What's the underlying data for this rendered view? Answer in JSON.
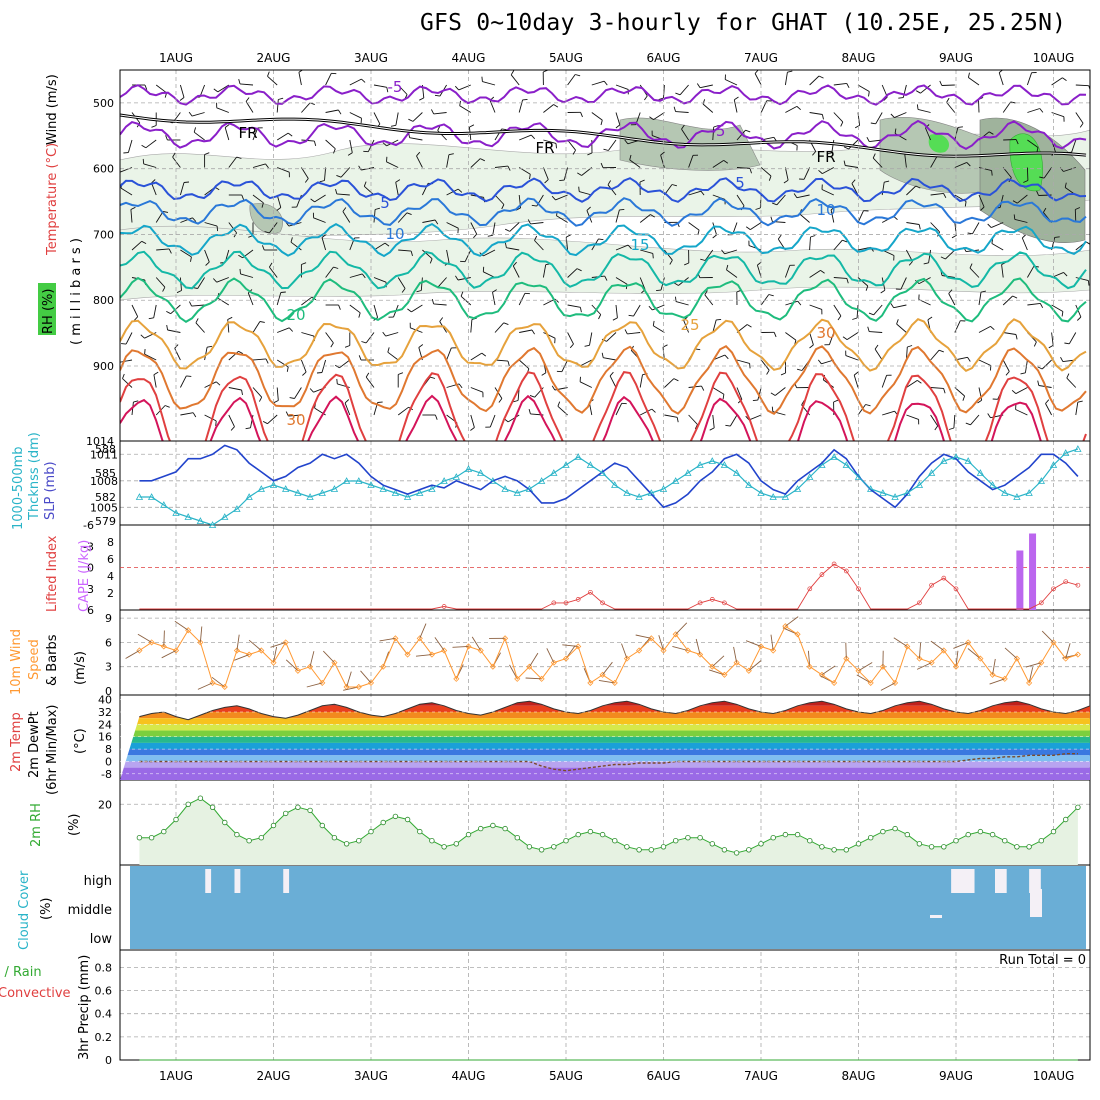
{
  "title": "GFS 0~10day 3-hourly for GHAT (10.25E, 25.25N)",
  "days": [
    "1AUG",
    "2AUG",
    "3AUG",
    "4AUG",
    "5AUG",
    "6AUG",
    "7AUG",
    "8AUG",
    "9AUG",
    "10AUG"
  ],
  "upper": {
    "ylabel_wind": "Wind (m/s)",
    "ylabel_temp": "Temperature (°C)",
    "ylabel_rh": "RH (%)",
    "ylabel_units": "( m i l l i b a r s )",
    "pressure_ticks": [
      "500",
      "600",
      "700",
      "800",
      "900",
      "1014"
    ],
    "temp_labels": [
      "-5",
      "-5",
      "5",
      "5",
      "10",
      "10",
      "15",
      "20",
      "25",
      "30",
      "30",
      "FR",
      "FR",
      "FR"
    ]
  },
  "panels": {
    "slp": {
      "label1": "1000-500mb",
      "label2": "Thcknss (dm)",
      "label3": "SLP (mb)",
      "left_ticks": [
        "588",
        "585",
        "582",
        "579"
      ],
      "right_ticks": [
        "1011",
        "1008",
        "1005"
      ]
    },
    "cape": {
      "label1": "Lifted Index",
      "label2": "CAPE (J/kg)",
      "left_ticks": [
        "-6",
        "-3",
        "0",
        "3",
        "6"
      ],
      "right_ticks": [
        "8",
        "6",
        "4",
        "2"
      ]
    },
    "wind10": {
      "label1": "10m Wind",
      "label2": "Speed",
      "label3": "& Barbs",
      "unit": "(m/s)",
      "ticks": [
        "9",
        "6",
        "3",
        "0"
      ]
    },
    "temp2m": {
      "label1": "2m Temp",
      "label2": "2m DewPt",
      "label3": "(6hr Min/Max)",
      "unit": "(°C)",
      "ticks": [
        "40",
        "32",
        "24",
        "16",
        "8",
        "0",
        "-8"
      ]
    },
    "rh2m": {
      "label1": "2m RH",
      "unit": "(%)",
      "ticks": [
        "20"
      ]
    },
    "cloud": {
      "label1": "Cloud Cover",
      "unit": "(%)",
      "ticks": [
        "high",
        "middle",
        "low"
      ]
    },
    "precip": {
      "label1": "Total / Rain",
      "label2": "Convective",
      "label3": "3hr Precip (mm)",
      "ticks": [
        "0.8",
        "0.6",
        "0.4",
        "0.2",
        "0"
      ],
      "run_total": "Run Total = 0"
    }
  },
  "chart_data": {
    "type": "line",
    "time_step_hours": 3,
    "x_start": "2020-07-31T15",
    "day_labels": [
      "1AUG",
      "2AUG",
      "3AUG",
      "4AUG",
      "5AUG",
      "6AUG",
      "7AUG",
      "8AUG",
      "9AUG",
      "10AUG"
    ],
    "slp_mb": [
      1008,
      1008,
      1008.5,
      1009,
      1010.5,
      1010.5,
      1011,
      1012,
      1011.5,
      1010,
      1009,
      1008,
      1008.5,
      1009.5,
      1010,
      1011,
      1010.5,
      1011,
      1010,
      1008.5,
      1007.5,
      1007,
      1006.5,
      1007,
      1007.5,
      1007.2,
      1008,
      1007.5,
      1007,
      1008,
      1008.5,
      1008,
      1007,
      1005.5,
      1005.5,
      1006,
      1007,
      1008,
      1009,
      1010,
      1009.5,
      1008,
      1006.5,
      1005,
      1005.5,
      1006.5,
      1008,
      1009,
      1010.5,
      1011,
      1010,
      1008,
      1007,
      1006.5,
      1008,
      1009,
      1010,
      1011.5,
      1010.5,
      1008.5,
      1007,
      1006,
      1005,
      1006.5,
      1008.5,
      1010,
      1011,
      1010.5,
      1009,
      1008,
      1007,
      1007.5,
      1008.5,
      1009.5,
      1011,
      1011,
      1010,
      1008.5,
      1007,
      1006,
      1005.5,
      1007,
      1008.5,
      1009.5,
      1010
    ],
    "thickness_dm": [
      582,
      582,
      581,
      580,
      579.5,
      579,
      578.5,
      579.5,
      580.5,
      582,
      583,
      583.5,
      583,
      582.5,
      582,
      582.5,
      583,
      584,
      584,
      583.5,
      583,
      582.5,
      582,
      582.5,
      583,
      584,
      584.5,
      585.5,
      585,
      584,
      583,
      582.5,
      583,
      584,
      585,
      586,
      587,
      586,
      585,
      583.5,
      582.5,
      582,
      582.5,
      583,
      584,
      585,
      586,
      586.5,
      586,
      585,
      583.5,
      582.5,
      582,
      582,
      583,
      584.5,
      586,
      587,
      586,
      584.5,
      583,
      582.5,
      582,
      582.5,
      583.5,
      585,
      586.5,
      587,
      586.5,
      585,
      583.5,
      582.5,
      582,
      582.5,
      584,
      586,
      587.5,
      588,
      587,
      585,
      583.5,
      583,
      582,
      581,
      580
    ],
    "lifted_index": [
      6,
      6,
      6,
      6,
      6,
      6,
      6,
      6,
      6,
      6,
      6,
      6,
      6,
      6,
      6,
      6,
      6,
      6,
      6,
      6,
      6,
      6,
      6,
      6,
      6,
      5.5,
      6,
      6,
      6,
      6,
      6,
      6,
      6,
      6,
      5,
      5,
      4.5,
      3.5,
      5,
      6,
      6,
      6,
      6,
      6,
      6,
      6,
      5,
      4.5,
      5,
      6,
      6,
      6,
      6,
      6,
      6,
      3,
      1,
      -0.5,
      0.5,
      3,
      6,
      6,
      6,
      6,
      5,
      2.5,
      1.5,
      3,
      6,
      6,
      6,
      6,
      6,
      6,
      5,
      3,
      2,
      2.5,
      4,
      5,
      4,
      3,
      2,
      3.5,
      5
    ],
    "cape_bars": [
      {
        "day_index": 8.65,
        "value": 7
      },
      {
        "day_index": 8.78,
        "value": 9
      }
    ],
    "wind10_speed_ms": [
      5,
      6,
      5.5,
      5,
      7.5,
      6,
      1,
      0.5,
      5,
      4.5,
      5,
      3.5,
      6,
      2.5,
      3,
      1,
      3.5,
      0.5,
      0.5,
      1,
      3,
      6.5,
      4.5,
      6.5,
      4.5,
      5,
      1.5,
      5.5,
      5,
      3,
      6.5,
      1.5,
      3,
      1.5,
      3.5,
      4,
      5.5,
      1,
      2,
      1,
      4,
      5,
      6.5,
      5,
      7,
      5,
      4.5,
      3,
      2,
      3.5,
      2.5,
      5.5,
      5,
      8,
      7,
      3,
      2,
      1,
      4,
      2.5,
      1,
      3,
      1,
      5.5,
      4,
      3.5,
      5,
      3,
      6,
      4,
      2,
      1.5,
      4,
      1,
      3.5,
      6,
      4,
      4.5,
      6,
      3,
      1.5,
      6,
      9.5,
      3
    ],
    "temp2m_c": [
      29,
      31,
      32,
      29,
      27,
      30,
      33,
      35,
      36,
      34,
      31,
      29,
      28,
      30,
      33,
      36,
      37,
      35,
      32,
      30,
      29,
      31,
      34,
      37,
      38,
      36,
      33,
      31,
      30,
      32,
      35,
      38,
      39,
      37,
      34,
      32,
      31,
      33,
      36,
      38,
      39,
      37,
      34,
      32,
      31,
      33,
      36,
      38,
      39,
      37,
      34,
      32,
      31,
      33,
      36,
      38,
      39,
      37,
      34,
      32,
      31,
      33,
      36,
      38,
      39,
      37,
      34,
      32,
      31,
      33,
      36,
      38,
      39,
      37,
      34,
      32,
      31,
      33,
      36,
      38,
      37,
      34,
      32,
      31,
      30
    ],
    "dewpt2m_c": [
      0,
      0,
      0,
      0,
      0,
      0,
      0,
      0,
      0,
      0,
      0,
      0,
      0,
      0,
      0,
      0,
      0,
      0,
      0,
      0,
      0,
      0,
      0,
      0,
      0,
      0,
      0,
      0,
      0,
      0,
      0,
      0,
      0,
      -3,
      -5,
      -6,
      -5,
      -4,
      -3,
      -2,
      -2,
      -1,
      -1,
      -1,
      0,
      0,
      0,
      0,
      0,
      0,
      0,
      0,
      0,
      0,
      0,
      0,
      0,
      0,
      0,
      0,
      0,
      0,
      0,
      0,
      0,
      0,
      0,
      0,
      1,
      2,
      2,
      3,
      3,
      4,
      4,
      4,
      5,
      5,
      5,
      5,
      5,
      5,
      5,
      5,
      5
    ],
    "rh2m_pct": [
      9,
      9,
      11,
      15,
      20,
      22,
      19,
      14,
      10,
      8,
      9,
      13,
      17,
      19,
      18,
      13,
      9,
      7,
      8,
      11,
      14,
      16,
      15,
      11,
      8,
      6,
      7,
      10,
      12,
      13,
      12,
      9,
      6,
      5,
      6,
      8,
      10,
      11,
      10,
      8,
      6,
      5,
      5,
      6,
      8,
      9,
      9,
      7,
      5,
      4,
      5,
      7,
      9,
      10,
      10,
      8,
      6,
      5,
      5,
      7,
      9,
      11,
      12,
      10,
      7,
      6,
      6,
      8,
      10,
      11,
      10,
      8,
      6,
      6,
      8,
      11,
      15,
      19,
      17,
      12,
      10,
      14,
      19,
      21,
      20
    ],
    "cloud_high_blocks": [
      {
        "day": 0.3,
        "w": 0.1
      },
      {
        "day": 0.6,
        "w": 0.1
      },
      {
        "day": 1.1,
        "w": 0.1
      },
      {
        "day": 7.95,
        "w": 0.4
      },
      {
        "day": 8.4,
        "w": 0.2
      },
      {
        "day": 8.75,
        "w": 0.2
      }
    ],
    "precip_mm": [
      0,
      0,
      0,
      0,
      0,
      0,
      0,
      0,
      0,
      0,
      0,
      0,
      0,
      0,
      0,
      0,
      0,
      0,
      0,
      0,
      0,
      0,
      0,
      0,
      0,
      0,
      0,
      0,
      0,
      0,
      0,
      0,
      0,
      0,
      0,
      0,
      0,
      0,
      0,
      0,
      0,
      0,
      0,
      0,
      0,
      0,
      0,
      0,
      0,
      0,
      0,
      0,
      0,
      0,
      0,
      0,
      0,
      0,
      0,
      0,
      0,
      0,
      0,
      0,
      0,
      0,
      0,
      0,
      0,
      0,
      0,
      0,
      0,
      0,
      0,
      0,
      0,
      0,
      0,
      0,
      0,
      0,
      0,
      0,
      0
    ]
  }
}
